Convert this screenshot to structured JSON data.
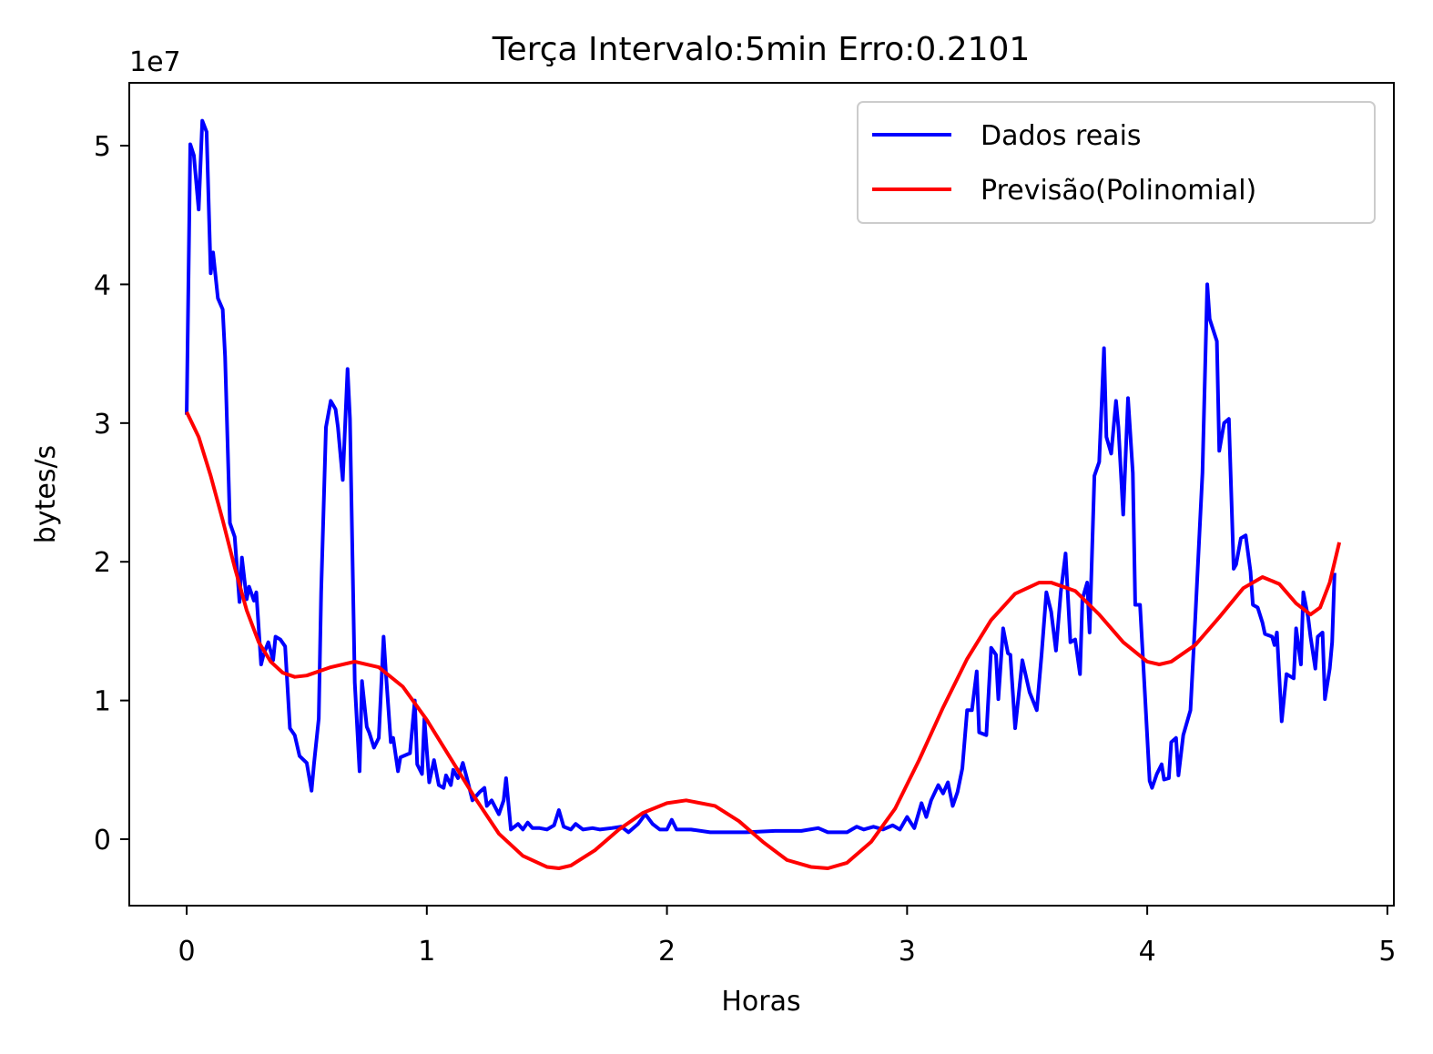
{
  "chart_data": {
    "type": "line",
    "title": "Terça Intervalo:5min Erro:0.2101",
    "x_label": "Horas",
    "y_label": "bytes/s",
    "y_offset_label": "1e7",
    "xlim": [
      -0.239,
      5.027
    ],
    "ylim": [
      -0.479,
      5.453
    ],
    "xticks": [
      0,
      1,
      2,
      3,
      4,
      5
    ],
    "yticks": [
      0,
      1,
      2,
      3,
      4,
      5
    ],
    "legend": "upper right",
    "grid": false,
    "series": [
      {
        "name": "Dados reais",
        "color": "#0000ff",
        "x": [
          0,
          0.015,
          0.03,
          0.05,
          0.065,
          0.083,
          0.1,
          0.11,
          0.13,
          0.15,
          0.16,
          0.18,
          0.2,
          0.22,
          0.23,
          0.25,
          0.26,
          0.28,
          0.29,
          0.31,
          0.32,
          0.34,
          0.36,
          0.37,
          0.39,
          0.41,
          0.43,
          0.45,
          0.47,
          0.5,
          0.52,
          0.53,
          0.55,
          0.56,
          0.58,
          0.6,
          0.62,
          0.63,
          0.65,
          0.67,
          0.68,
          0.7,
          0.72,
          0.73,
          0.75,
          0.76,
          0.78,
          0.8,
          0.82,
          0.83,
          0.85,
          0.86,
          0.88,
          0.89,
          0.93,
          0.95,
          0.96,
          0.98,
          0.99,
          1.01,
          1.03,
          1.05,
          1.07,
          1.08,
          1.1,
          1.11,
          1.13,
          1.15,
          1.17,
          1.19,
          1.22,
          1.24,
          1.25,
          1.27,
          1.3,
          1.32,
          1.33,
          1.35,
          1.38,
          1.4,
          1.42,
          1.44,
          1.47,
          1.5,
          1.53,
          1.55,
          1.57,
          1.6,
          1.62,
          1.65,
          1.69,
          1.72,
          1.77,
          1.81,
          1.84,
          1.88,
          1.91,
          1.94,
          1.97,
          2.0,
          2.02,
          2.04,
          2.1,
          2.18,
          2.26,
          2.33,
          2.45,
          2.56,
          2.63,
          2.67,
          2.75,
          2.79,
          2.82,
          2.86,
          2.9,
          2.94,
          2.97,
          3.0,
          3.03,
          3.06,
          3.08,
          3.1,
          3.13,
          3.15,
          3.17,
          3.19,
          3.21,
          3.23,
          3.25,
          3.27,
          3.29,
          3.3,
          3.33,
          3.35,
          3.37,
          3.38,
          3.4,
          3.42,
          3.43,
          3.45,
          3.48,
          3.51,
          3.54,
          3.56,
          3.58,
          3.6,
          3.62,
          3.64,
          3.66,
          3.68,
          3.7,
          3.72,
          3.73,
          3.75,
          3.76,
          3.78,
          3.8,
          3.82,
          3.83,
          3.85,
          3.87,
          3.88,
          3.9,
          3.92,
          3.94,
          3.95,
          3.97,
          3.99,
          4.01,
          4.02,
          4.04,
          4.06,
          4.07,
          4.09,
          4.1,
          4.12,
          4.13,
          4.15,
          4.18,
          4.2,
          4.23,
          4.25,
          4.26,
          4.29,
          4.3,
          4.32,
          4.34,
          4.36,
          4.37,
          4.39,
          4.41,
          4.43,
          4.44,
          4.46,
          4.48,
          4.49,
          4.52,
          4.53,
          4.54,
          4.56,
          4.58,
          4.59,
          4.61,
          4.62,
          4.64,
          4.65,
          4.67,
          4.68,
          4.7,
          4.71,
          4.73,
          4.74,
          4.76,
          4.77,
          4.78
        ],
        "values": [
          3.06,
          5.01,
          4.93,
          4.54,
          5.18,
          5.1,
          4.08,
          4.23,
          3.9,
          3.82,
          3.48,
          2.28,
          2.18,
          1.71,
          2.03,
          1.73,
          1.82,
          1.72,
          1.78,
          1.26,
          1.33,
          1.42,
          1.29,
          1.46,
          1.44,
          1.39,
          0.8,
          0.75,
          0.6,
          0.55,
          0.35,
          0.54,
          0.87,
          1.78,
          2.97,
          3.16,
          3.1,
          2.97,
          2.59,
          3.39,
          3.03,
          1.13,
          0.49,
          1.14,
          0.81,
          0.77,
          0.66,
          0.73,
          1.46,
          1.19,
          0.7,
          0.73,
          0.49,
          0.59,
          0.62,
          1.0,
          0.54,
          0.47,
          0.87,
          0.41,
          0.57,
          0.39,
          0.37,
          0.46,
          0.39,
          0.5,
          0.44,
          0.55,
          0.42,
          0.28,
          0.34,
          0.37,
          0.24,
          0.28,
          0.18,
          0.28,
          0.44,
          0.07,
          0.11,
          0.07,
          0.12,
          0.08,
          0.08,
          0.07,
          0.1,
          0.21,
          0.09,
          0.07,
          0.11,
          0.07,
          0.08,
          0.07,
          0.08,
          0.09,
          0.05,
          0.11,
          0.18,
          0.11,
          0.07,
          0.07,
          0.14,
          0.07,
          0.07,
          0.05,
          0.05,
          0.05,
          0.06,
          0.06,
          0.08,
          0.05,
          0.05,
          0.09,
          0.07,
          0.09,
          0.07,
          0.1,
          0.07,
          0.16,
          0.08,
          0.26,
          0.16,
          0.28,
          0.39,
          0.33,
          0.41,
          0.24,
          0.34,
          0.51,
          0.93,
          0.93,
          1.21,
          0.77,
          0.75,
          1.38,
          1.33,
          1.01,
          1.52,
          1.34,
          1.33,
          0.8,
          1.29,
          1.06,
          0.93,
          1.33,
          1.78,
          1.64,
          1.36,
          1.78,
          2.06,
          1.42,
          1.44,
          1.19,
          1.73,
          1.85,
          1.49,
          2.62,
          2.72,
          3.54,
          2.9,
          2.78,
          3.16,
          2.97,
          2.34,
          3.18,
          2.64,
          1.69,
          1.69,
          1.06,
          0.42,
          0.37,
          0.47,
          0.54,
          0.43,
          0.44,
          0.7,
          0.73,
          0.46,
          0.75,
          0.93,
          1.59,
          2.64,
          4.0,
          3.75,
          3.59,
          2.8,
          3.0,
          3.03,
          1.95,
          1.98,
          2.17,
          2.19,
          1.93,
          1.69,
          1.67,
          1.56,
          1.48,
          1.46,
          1.4,
          1.49,
          0.85,
          1.19,
          1.18,
          1.16,
          1.52,
          1.26,
          1.78,
          1.6,
          1.46,
          1.23,
          1.46,
          1.49,
          1.01,
          1.23,
          1.42,
          1.92
        ]
      },
      {
        "name": "Previsão(Polinomial)",
        "color": "#ff0000",
        "x": [
          0,
          0.05,
          0.1,
          0.15,
          0.2,
          0.25,
          0.3,
          0.35,
          0.4,
          0.45,
          0.5,
          0.6,
          0.7,
          0.8,
          0.9,
          1.0,
          1.1,
          1.2,
          1.3,
          1.4,
          1.5,
          1.55,
          1.6,
          1.7,
          1.8,
          1.9,
          2.0,
          2.08,
          2.2,
          2.3,
          2.4,
          2.5,
          2.6,
          2.67,
          2.75,
          2.85,
          2.95,
          3.05,
          3.15,
          3.25,
          3.35,
          3.45,
          3.55,
          3.6,
          3.7,
          3.8,
          3.9,
          4.0,
          4.05,
          4.1,
          4.2,
          4.3,
          4.4,
          4.48,
          4.55,
          4.62,
          4.68,
          4.72,
          4.76,
          4.8
        ],
        "values": [
          3.08,
          2.9,
          2.62,
          2.3,
          1.96,
          1.65,
          1.42,
          1.28,
          1.2,
          1.17,
          1.18,
          1.24,
          1.28,
          1.24,
          1.1,
          0.86,
          0.58,
          0.3,
          0.04,
          -0.12,
          -0.2,
          -0.21,
          -0.19,
          -0.08,
          0.07,
          0.19,
          0.26,
          0.28,
          0.24,
          0.13,
          -0.02,
          -0.15,
          -0.2,
          -0.21,
          -0.17,
          -0.02,
          0.22,
          0.57,
          0.95,
          1.3,
          1.58,
          1.77,
          1.85,
          1.85,
          1.79,
          1.62,
          1.42,
          1.28,
          1.26,
          1.28,
          1.4,
          1.6,
          1.81,
          1.89,
          1.84,
          1.7,
          1.62,
          1.67,
          1.85,
          2.14
        ]
      }
    ]
  }
}
